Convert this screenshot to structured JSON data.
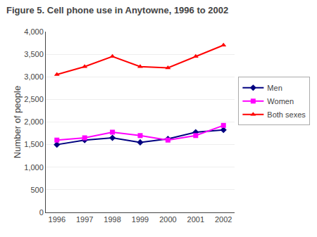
{
  "chart_data": {
    "type": "line",
    "title": "Figure 5. Cell phone use in Anytowne, 1996 to 2002",
    "y_label": "Number of people",
    "x": [
      1996,
      1997,
      1998,
      1999,
      2000,
      2001,
      2002
    ],
    "series": [
      {
        "name": "Men",
        "color": "#000080",
        "marker": "diamond",
        "values": [
          1500,
          1600,
          1650,
          1550,
          1625,
          1775,
          1825
        ]
      },
      {
        "name": "Women",
        "color": "#FF00FF",
        "marker": "square",
        "values": [
          1600,
          1650,
          1775,
          1700,
          1600,
          1700,
          1925
        ]
      },
      {
        "name": "Both sexes",
        "color": "#FF0000",
        "marker": "triangle-up",
        "values": [
          3050,
          3225,
          3450,
          3225,
          3200,
          3450,
          3700
        ]
      }
    ],
    "xlim": [
      1995.6,
      2002.4
    ],
    "xticks": [
      1996,
      1997,
      1998,
      1999,
      2000,
      2001,
      2002
    ],
    "ylim": [
      0,
      4000
    ],
    "yticks": [
      0,
      500,
      {
        "value": 1000,
        "label": "1,000"
      },
      {
        "value": 1500,
        "label": "1,500"
      },
      {
        "value": 2000,
        "label": "2,000"
      },
      {
        "value": 2500,
        "label": "2,500"
      },
      {
        "value": 3000,
        "label": "3,000"
      },
      {
        "value": 3500,
        "label": "3,500"
      },
      {
        "value": 4000,
        "label": "4,000"
      }
    ],
    "grid": "y",
    "legend": "right"
  }
}
